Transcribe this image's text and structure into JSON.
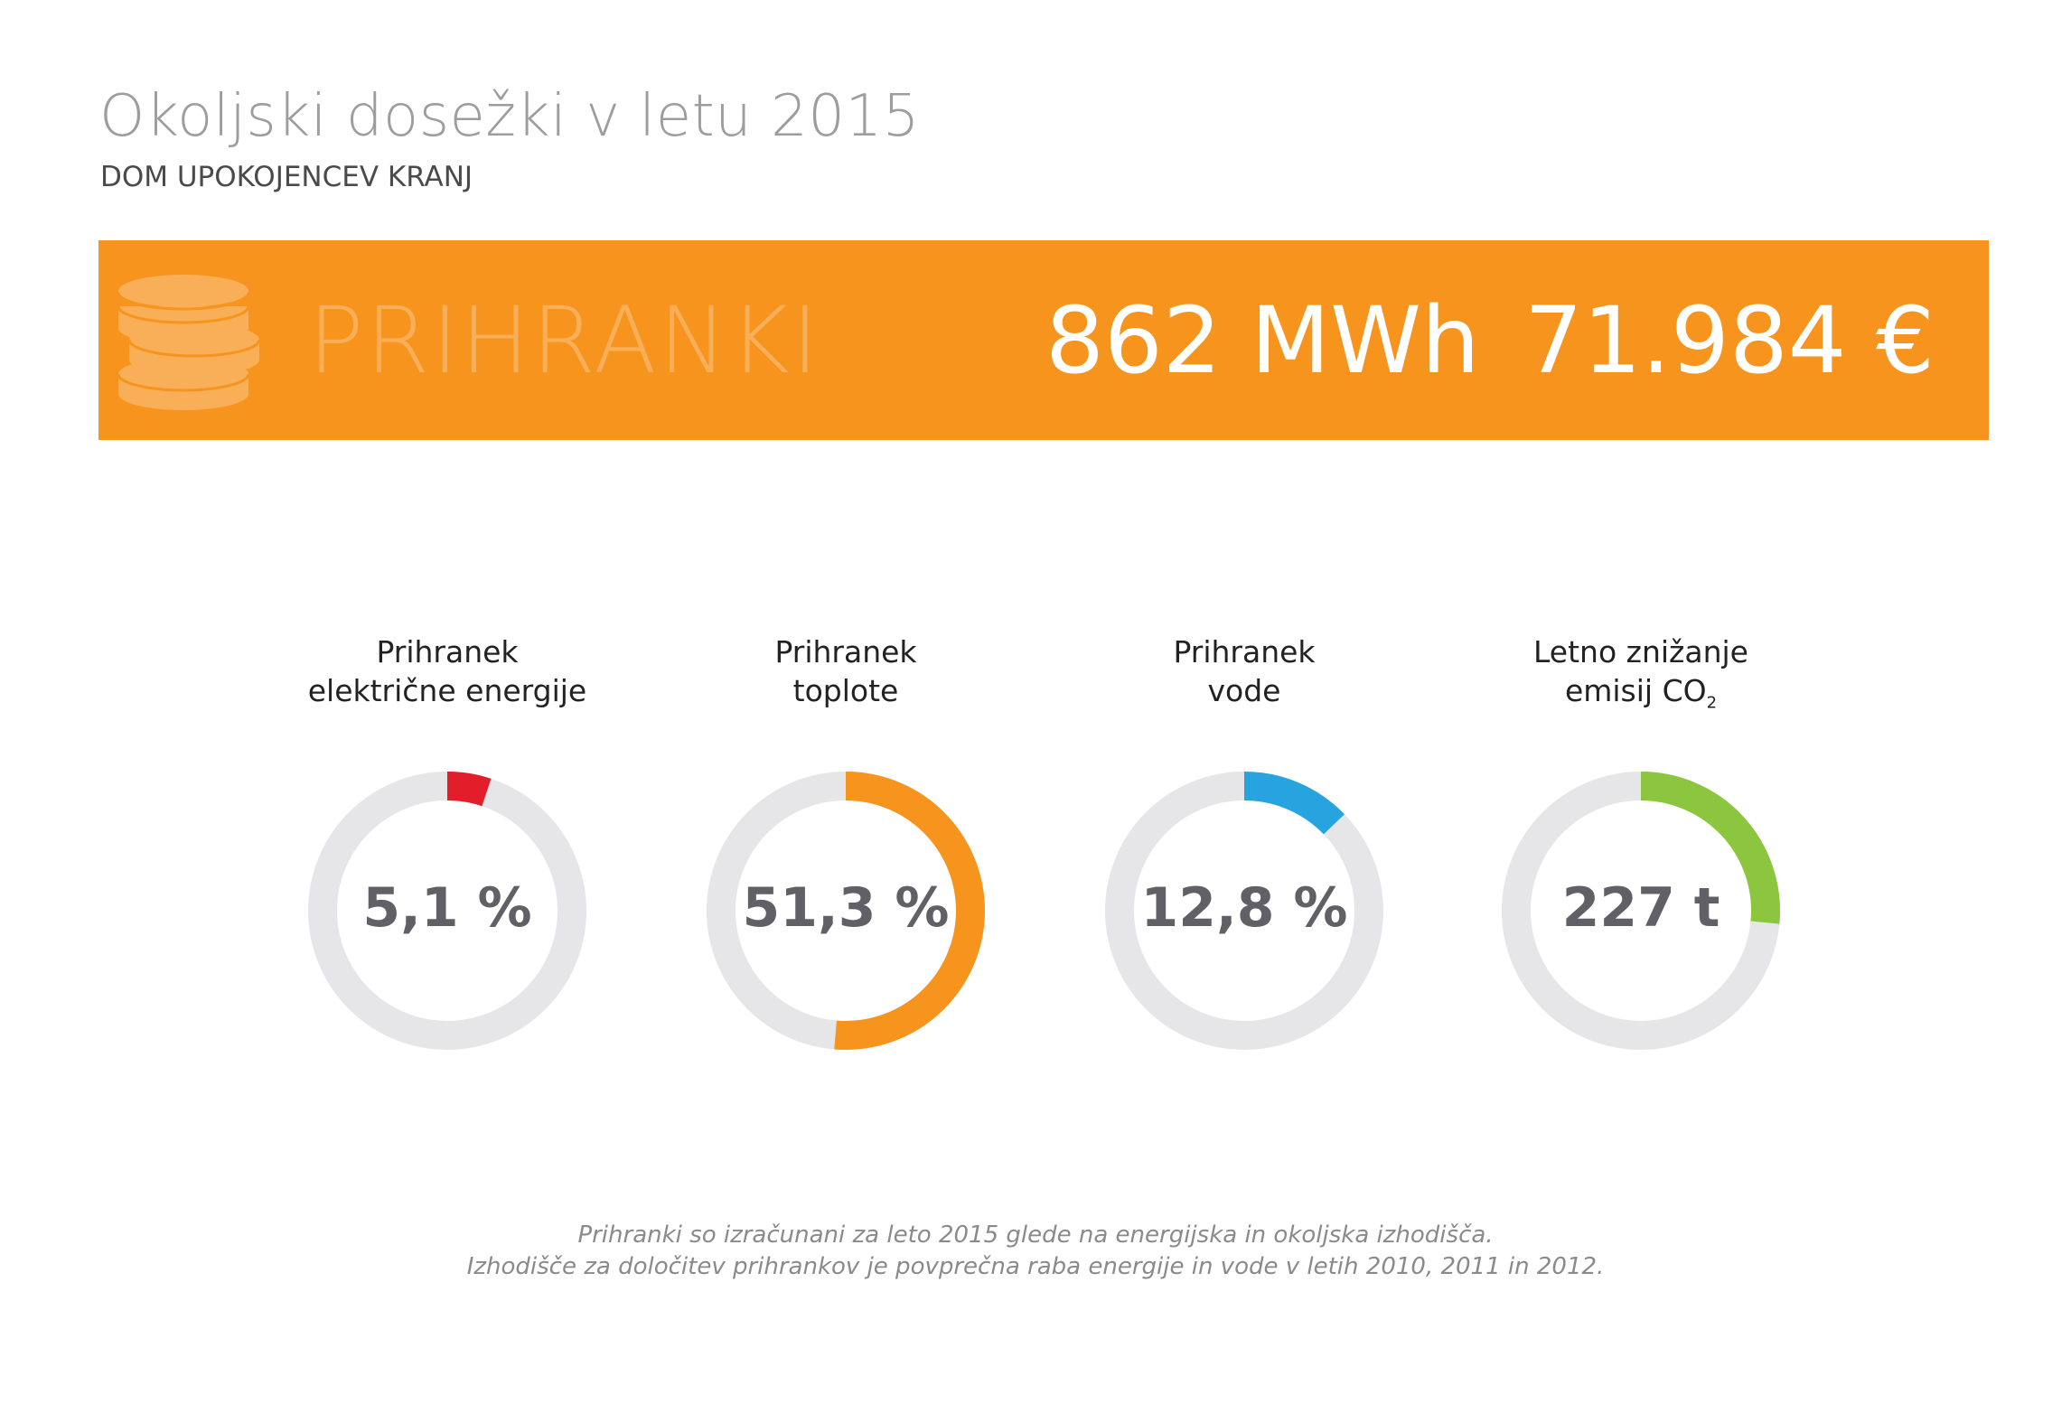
{
  "header": {
    "title": "Okoljski dosežki v letu 2015",
    "subtitle": "DOM UPOKOJENCEV KRANJ"
  },
  "banner": {
    "icon": "coins-icon",
    "label": "PRIHRANKI",
    "energy": "862 MWh",
    "money": "71.984 €",
    "color": "#f7941d"
  },
  "metrics": [
    {
      "label_line1": "Prihranek",
      "label_line2": "električne energije",
      "value": "5,1 %",
      "fraction": 0.051,
      "color": "#e31e2b"
    },
    {
      "label_line1": "Prihranek",
      "label_line2": "toplote",
      "value": "51,3 %",
      "fraction": 0.513,
      "color": "#f7941d"
    },
    {
      "label_line1": "Prihranek",
      "label_line2": "vode",
      "value": "12,8 %",
      "fraction": 0.128,
      "color": "#27a3e0"
    },
    {
      "label_line1": "Letno znižanje",
      "label_line2": "emisij CO",
      "label_sub": "2",
      "value": "227 t",
      "fraction": 0.265,
      "color": "#8cc63f"
    }
  ],
  "track_color": "#e6e6e8",
  "footer": {
    "line1": "Prihranki so izračunani za leto 2015 glede na energijska in okoljska izhodišča.",
    "line2": "Izhodišče za določitev prihrankov je povprečna raba energije in vode v letih 2010, 2011 in 2012."
  }
}
